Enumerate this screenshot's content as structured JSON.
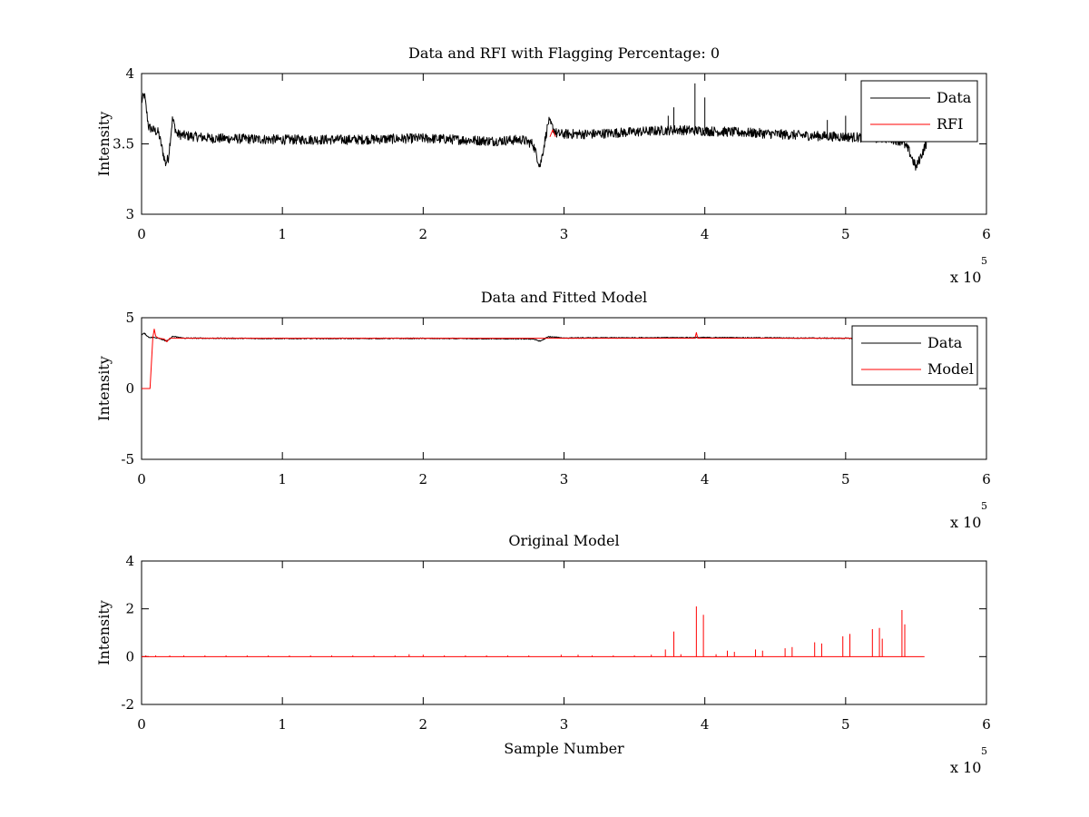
{
  "chart_data": [
    {
      "type": "line",
      "title": "Data and RFI with Flagging Percentage: 0",
      "xlabel": "",
      "ylabel": "Intensity",
      "xlim": [
        0,
        600000
      ],
      "ylim": [
        3,
        4
      ],
      "xticks": [
        0,
        100000,
        200000,
        300000,
        400000,
        500000,
        600000
      ],
      "xtick_labels": [
        "0",
        "1",
        "2",
        "3",
        "4",
        "5",
        "6"
      ],
      "yticks": [
        3,
        3.5,
        4
      ],
      "ytick_labels": [
        "3",
        "3.5",
        "4"
      ],
      "x_multiplier": {
        "base": "x 10",
        "exponent": "5"
      },
      "legend": {
        "position": "top-right",
        "entries": [
          "Data",
          "RFI"
        ]
      },
      "series": [
        {
          "name": "Data",
          "color": "#000000",
          "x": [
            0,
            2000,
            5000,
            8000,
            12000,
            17000,
            19000,
            22000,
            25000,
            30000,
            50000,
            100000,
            150000,
            200000,
            250000,
            270000,
            278000,
            283000,
            286000,
            289000,
            295000,
            320000,
            380000,
            430000,
            470000,
            500000,
            530000,
            540000,
            545000,
            550000,
            555000,
            560000
          ],
          "y": [
            3.8,
            3.85,
            3.62,
            3.6,
            3.58,
            3.36,
            3.4,
            3.68,
            3.57,
            3.56,
            3.54,
            3.53,
            3.53,
            3.54,
            3.52,
            3.53,
            3.5,
            3.34,
            3.5,
            3.66,
            3.57,
            3.57,
            3.6,
            3.58,
            3.56,
            3.55,
            3.54,
            3.52,
            3.45,
            3.33,
            3.45,
            3.57
          ],
          "noise_amplitude": 0.035,
          "spikes": [
            {
              "x": 374000,
              "y": 3.7
            },
            {
              "x": 378000,
              "y": 3.76
            },
            {
              "x": 393000,
              "y": 3.93
            },
            {
              "x": 400000,
              "y": 3.83
            },
            {
              "x": 487000,
              "y": 3.67
            },
            {
              "x": 500000,
              "y": 3.7
            }
          ]
        },
        {
          "name": "RFI",
          "color": "#ff0000",
          "x": [
            290000,
            292000,
            294000
          ],
          "y": [
            3.55,
            3.6,
            3.55
          ]
        }
      ]
    },
    {
      "type": "line",
      "title": "Data and Fitted Model",
      "xlabel": "",
      "ylabel": "Intensity",
      "xlim": [
        0,
        600000
      ],
      "ylim": [
        -5,
        5
      ],
      "xticks": [
        0,
        100000,
        200000,
        300000,
        400000,
        500000,
        600000
      ],
      "xtick_labels": [
        "0",
        "1",
        "2",
        "3",
        "4",
        "5",
        "6"
      ],
      "yticks": [
        -5,
        0,
        5
      ],
      "ytick_labels": [
        "-5",
        "0",
        "5"
      ],
      "x_multiplier": {
        "base": "x 10",
        "exponent": "5"
      },
      "legend": {
        "position": "top-right",
        "entries": [
          "Data",
          "Model"
        ]
      },
      "series": [
        {
          "name": "Data",
          "color": "#000000",
          "x": [
            0,
            2000,
            5000,
            12000,
            17000,
            19000,
            22000,
            30000,
            100000,
            200000,
            278000,
            283000,
            289000,
            300000,
            400000,
            500000,
            545000,
            550000,
            560000
          ],
          "y": [
            3.8,
            3.9,
            3.62,
            3.58,
            3.36,
            3.4,
            3.68,
            3.56,
            3.53,
            3.54,
            3.5,
            3.34,
            3.66,
            3.57,
            3.6,
            3.55,
            3.45,
            3.33,
            3.57
          ],
          "noise_amplitude": 0.035,
          "spikes": []
        },
        {
          "name": "Model",
          "color": "#ff0000",
          "x": [
            0,
            6000,
            7000,
            8000,
            9000,
            10000,
            12000,
            16000,
            18000,
            20000,
            25000,
            100000,
            200000,
            300000,
            393000,
            394000,
            395000,
            500000,
            560000
          ],
          "y": [
            0,
            0,
            1.8,
            3.6,
            4.2,
            3.7,
            3.55,
            3.5,
            3.3,
            3.55,
            3.55,
            3.55,
            3.55,
            3.55,
            3.55,
            3.95,
            3.55,
            3.55,
            3.55
          ],
          "noise_amplitude": 0,
          "spikes": []
        }
      ]
    },
    {
      "type": "line",
      "title": "Original Model",
      "xlabel": "Sample Number",
      "ylabel": "Intensity",
      "xlim": [
        0,
        600000
      ],
      "ylim": [
        -2,
        4
      ],
      "xticks": [
        0,
        100000,
        200000,
        300000,
        400000,
        500000,
        600000
      ],
      "xtick_labels": [
        "0",
        "1",
        "2",
        "3",
        "4",
        "5",
        "6"
      ],
      "yticks": [
        -2,
        0,
        2,
        4
      ],
      "ytick_labels": [
        "-2",
        "0",
        "2",
        "4"
      ],
      "x_multiplier": {
        "base": "x 10",
        "exponent": "5"
      },
      "legend": null,
      "series": [
        {
          "name": "",
          "color": "#ff0000",
          "x": [
            0,
            556000
          ],
          "y": [
            0,
            0
          ],
          "noise_amplitude": 0,
          "spikes": [
            {
              "x": 3000,
              "y": 0.05
            },
            {
              "x": 10000,
              "y": 0.05
            },
            {
              "x": 20000,
              "y": 0.05
            },
            {
              "x": 30000,
              "y": 0.05
            },
            {
              "x": 45000,
              "y": 0.05
            },
            {
              "x": 60000,
              "y": 0.05
            },
            {
              "x": 75000,
              "y": 0.05
            },
            {
              "x": 90000,
              "y": 0.05
            },
            {
              "x": 105000,
              "y": 0.05
            },
            {
              "x": 120000,
              "y": 0.05
            },
            {
              "x": 135000,
              "y": 0.05
            },
            {
              "x": 150000,
              "y": 0.05
            },
            {
              "x": 165000,
              "y": 0.05
            },
            {
              "x": 180000,
              "y": 0.05
            },
            {
              "x": 190000,
              "y": 0.1
            },
            {
              "x": 200000,
              "y": 0.08
            },
            {
              "x": 215000,
              "y": 0.05
            },
            {
              "x": 230000,
              "y": 0.05
            },
            {
              "x": 245000,
              "y": 0.05
            },
            {
              "x": 260000,
              "y": 0.05
            },
            {
              "x": 275000,
              "y": 0.05
            },
            {
              "x": 298000,
              "y": 0.08
            },
            {
              "x": 310000,
              "y": 0.08
            },
            {
              "x": 320000,
              "y": 0.05
            },
            {
              "x": 335000,
              "y": 0.05
            },
            {
              "x": 350000,
              "y": 0.05
            },
            {
              "x": 362000,
              "y": 0.08
            },
            {
              "x": 372000,
              "y": 0.3
            },
            {
              "x": 378000,
              "y": 1.05
            },
            {
              "x": 383000,
              "y": 0.1
            },
            {
              "x": 394000,
              "y": 2.1
            },
            {
              "x": 399000,
              "y": 1.75
            },
            {
              "x": 408000,
              "y": 0.1
            },
            {
              "x": 416000,
              "y": 0.25
            },
            {
              "x": 421000,
              "y": 0.2
            },
            {
              "x": 436000,
              "y": 0.3
            },
            {
              "x": 441000,
              "y": 0.25
            },
            {
              "x": 457000,
              "y": 0.35
            },
            {
              "x": 462000,
              "y": 0.4
            },
            {
              "x": 478000,
              "y": 0.6
            },
            {
              "x": 483000,
              "y": 0.55
            },
            {
              "x": 498000,
              "y": 0.85
            },
            {
              "x": 503000,
              "y": 0.95
            },
            {
              "x": 519000,
              "y": 1.15
            },
            {
              "x": 524000,
              "y": 1.2
            },
            {
              "x": 526000,
              "y": 0.75
            },
            {
              "x": 540000,
              "y": 1.95
            },
            {
              "x": 542000,
              "y": 1.35
            }
          ]
        }
      ]
    }
  ]
}
